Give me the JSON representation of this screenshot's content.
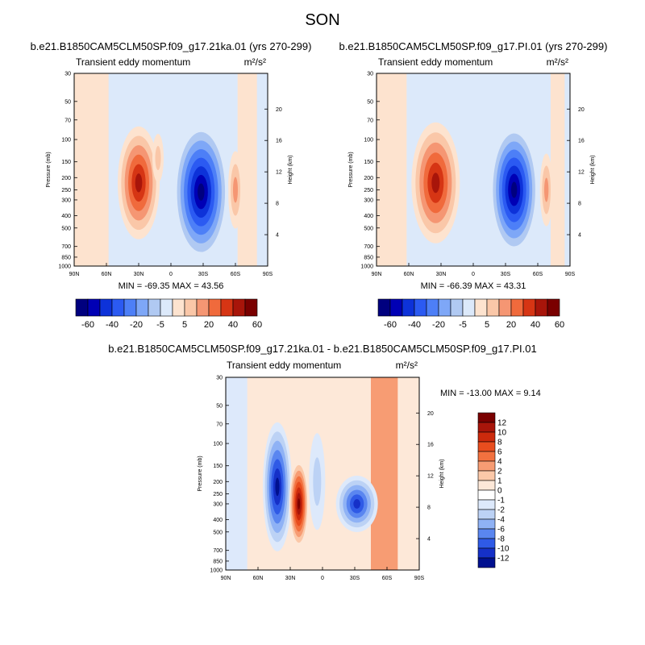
{
  "page_title": "SON",
  "chart_data": [
    {
      "type": "heatmap",
      "id": "panel1",
      "title": "b.e21.B1850CAM5CLM50SP.f09_g17.21ka.01 (yrs 270-299)",
      "subtitle_left": "Transient eddy momentum",
      "units": "m²/s²",
      "xlabel": "",
      "ylabel": "Pressure (mb)",
      "y2label": "Height (km)",
      "x_ticks": [
        "90N",
        "60N",
        "30N",
        "0",
        "30S",
        "60S",
        "90S"
      ],
      "y_ticks": [
        "30",
        "50",
        "70",
        "100",
        "150",
        "200",
        "250",
        "300",
        "400",
        "500",
        "700",
        "850",
        "1000"
      ],
      "y2_ticks": [
        "4",
        "8",
        "12",
        "16",
        "20"
      ],
      "min_max_text": "MIN = -69.35  MAX = 43.56",
      "min": -69.35,
      "max": 43.56,
      "colorbar_labels": [
        "-60",
        "-40",
        "-20",
        "-5",
        "5",
        "20",
        "40",
        "60"
      ],
      "features": [
        {
          "lat": 30,
          "p": 220,
          "value": 43.56
        },
        {
          "lat": -28,
          "p": 260,
          "value": -69.35
        },
        {
          "lat": -60,
          "p": 250,
          "value": 20
        }
      ]
    },
    {
      "type": "heatmap",
      "id": "panel2",
      "title": "b.e21.B1850CAM5CLM50SP.f09_g17.PI.01 (yrs 270-299)",
      "subtitle_left": "Transient eddy momentum",
      "units": "m²/s²",
      "xlabel": "",
      "ylabel": "Pressure (mb)",
      "y2label": "Height (km)",
      "x_ticks": [
        "90N",
        "60N",
        "30N",
        "0",
        "30S",
        "60S",
        "90S"
      ],
      "y_ticks": [
        "30",
        "50",
        "70",
        "100",
        "150",
        "200",
        "250",
        "300",
        "400",
        "500",
        "700",
        "850",
        "1000"
      ],
      "y2_ticks": [
        "4",
        "8",
        "12",
        "16",
        "20"
      ],
      "min_max_text": "MIN = -66.39  MAX = 43.31",
      "min": -66.39,
      "max": 43.31,
      "colorbar_labels": [
        "-60",
        "-40",
        "-20",
        "-5",
        "5",
        "20",
        "40",
        "60"
      ],
      "features": [
        {
          "lat": 35,
          "p": 220,
          "value": 43.31
        },
        {
          "lat": -40,
          "p": 250,
          "value": -66.39
        },
        {
          "lat": -68,
          "p": 250,
          "value": 18
        }
      ]
    },
    {
      "type": "heatmap",
      "id": "panel3",
      "title": "b.e21.B1850CAM5CLM50SP.f09_g17.21ka.01 - b.e21.B1850CAM5CLM50SP.f09_g17.PI.01",
      "subtitle_left": "Transient eddy momentum",
      "units": "m²/s²",
      "xlabel": "",
      "ylabel": "Pressure (mb)",
      "y2label": "Height (km)",
      "x_ticks": [
        "90N",
        "60N",
        "30N",
        "0",
        "30S",
        "60S",
        "90S"
      ],
      "y_ticks": [
        "30",
        "50",
        "70",
        "100",
        "150",
        "200",
        "250",
        "300",
        "400",
        "500",
        "700",
        "850",
        "1000"
      ],
      "y2_ticks": [
        "4",
        "8",
        "12",
        "16",
        "20"
      ],
      "min_max_text": "MIN = -13.00  MAX =   9.14",
      "min": -13.0,
      "max": 9.14,
      "colorbar_labels": [
        "12",
        "10",
        "8",
        "6",
        "4",
        "2",
        "1",
        "0",
        "-1",
        "-2",
        "-4",
        "-6",
        "-8",
        "-10",
        "-12"
      ],
      "features": [
        {
          "lat": 42,
          "p": 220,
          "value": -13.0
        },
        {
          "lat": 22,
          "p": 300,
          "value": 9.14
        },
        {
          "lat": -28,
          "p": 300,
          "value": -8
        },
        {
          "lat": -45,
          "p": 330,
          "value": -6
        },
        {
          "lat": -60,
          "p": 200,
          "value": 6
        }
      ]
    }
  ],
  "colors": {
    "panel_scale": [
      "#00007f",
      "#0000b5",
      "#0d32d9",
      "#2b5af2",
      "#4d7ff7",
      "#7ea7f7",
      "#b0c9f2",
      "#dce9fa",
      "#fde3cf",
      "#fac7a8",
      "#f59673",
      "#f06a3c",
      "#d63514",
      "#a8150a",
      "#7a0000"
    ],
    "diff_scale": [
      "#7a0000",
      "#a8150a",
      "#cc2a0c",
      "#e84d1e",
      "#f2713f",
      "#f79c73",
      "#fbc8a8",
      "#fde8d8",
      "#ffffff",
      "#dde9fb",
      "#bcd2f5",
      "#8fb2f5",
      "#5a86f0",
      "#2f5ae6",
      "#1530c8",
      "#00108f"
    ]
  }
}
